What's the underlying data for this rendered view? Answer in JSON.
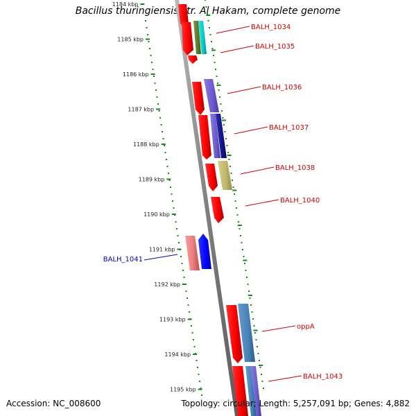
{
  "title": "Bacillus thuringiensis str. Al Hakam, complete genome",
  "footer": {
    "accession": "Accession: NC_008600",
    "summary": "Topology: circular; Length: 5,257,091 bp; Genes: 4,882"
  },
  "ruler": {
    "labels": [
      "1184 kbp",
      "1185 kbp",
      "1186 kbp",
      "1187 kbp",
      "1188 kbp",
      "1189 kbp",
      "1190 kbp",
      "1191 kbp",
      "1192 kbp",
      "1193 kbp",
      "1194 kbp",
      "1195 kbp"
    ]
  },
  "genes": [
    {
      "name": "BALH_1034",
      "color": "#cc0000"
    },
    {
      "name": "BALH_1035",
      "color": "#cc0000"
    },
    {
      "name": "BALH_1036",
      "color": "#cc0000"
    },
    {
      "name": "BALH_1037",
      "color": "#cc0000"
    },
    {
      "name": "BALH_1038",
      "color": "#cc0000"
    },
    {
      "name": "BALH_1040",
      "color": "#cc0000"
    },
    {
      "name": "BALH_1041",
      "color": "#0000bb"
    },
    {
      "name": "oppA",
      "color": "#cc0000"
    },
    {
      "name": "BALH_1043",
      "color": "#cc0000"
    }
  ],
  "colors": {
    "backbone": "#8a8a8a",
    "tick": "#138a13",
    "cds_forward": "#ff0000",
    "cds_reverse": "#0000ff"
  }
}
